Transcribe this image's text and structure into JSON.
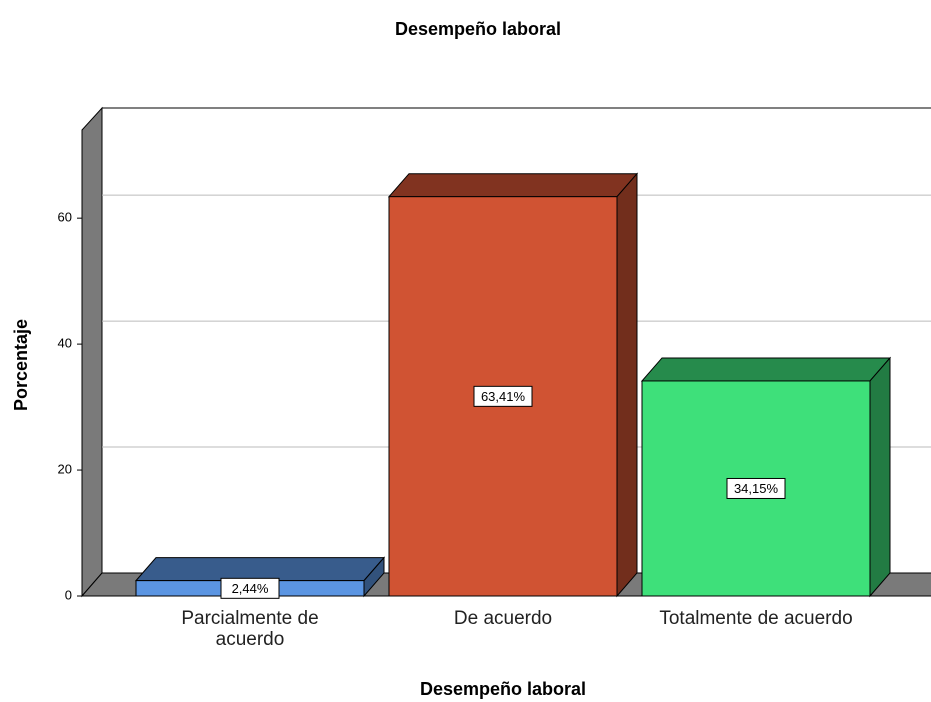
{
  "chart_data": {
    "type": "bar3d",
    "title": "Desempeño laboral",
    "x_label": "Desempeño laboral",
    "y_label": "Porcentaje",
    "categories": [
      "Parcialmente de acuerdo",
      "De acuerdo",
      "Totalmente de acuerdo"
    ],
    "values": [
      2.44,
      63.41,
      34.15
    ],
    "value_labels": [
      "2,44%",
      "63,41%",
      "34,15%"
    ],
    "colors": [
      "#5b95e2",
      "#d05333",
      "#3ee07a"
    ],
    "ylim": [
      0,
      74
    ],
    "yticks": [
      0,
      20,
      40,
      60
    ],
    "grid": true
  }
}
